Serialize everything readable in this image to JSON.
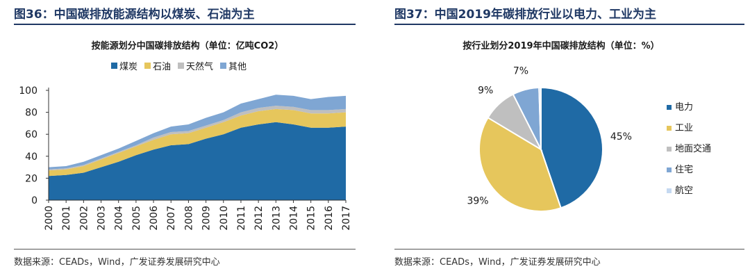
{
  "figures": {
    "left": {
      "caption": "图36：中国碳排放能源结构以煤炭、石油为主",
      "source": "数据来源：CEADs，Wind，广发证券发展研究中心"
    },
    "right": {
      "caption": "图37：中国2019年碳排放行业以电力、工业为主",
      "source": "数据来源：CEADs，Wind，广发证券发展研究中心"
    }
  },
  "chart_data": [
    {
      "type": "area",
      "stacked": true,
      "title": "按能源划分中国碳排放结构（单位：亿吨CO2）",
      "xlabel": "",
      "ylabel": "",
      "x": [
        "2000",
        "2001",
        "2002",
        "2003",
        "2004",
        "2005",
        "2006",
        "2007",
        "2008",
        "2009",
        "2010",
        "2011",
        "2012",
        "2013",
        "2014",
        "2015",
        "2016",
        "2017"
      ],
      "ylim": [
        0,
        100
      ],
      "yticks": [
        0,
        20,
        40,
        60,
        80,
        100
      ],
      "legend_position": "top",
      "grid": false,
      "series": [
        {
          "name": "煤炭",
          "color": "#1f6aa5",
          "values": [
            22,
            23,
            25,
            30,
            35,
            41,
            46,
            50,
            51,
            56,
            60,
            66,
            69,
            71,
            69,
            66,
            66,
            67
          ]
        },
        {
          "name": "石油",
          "color": "#e6c65c",
          "values": [
            5,
            5,
            6,
            7,
            8,
            8,
            9,
            10,
            10,
            10,
            11,
            11,
            12,
            12,
            13,
            13,
            13,
            13
          ]
        },
        {
          "name": "天然气",
          "color": "#bfbfbf",
          "values": [
            1,
            1,
            1,
            1,
            1,
            1,
            2,
            2,
            2,
            2,
            2,
            3,
            3,
            3,
            3,
            3,
            3,
            3
          ]
        },
        {
          "name": "其他",
          "color": "#7fa6d3",
          "values": [
            2,
            2,
            3,
            3,
            3,
            4,
            4,
            5,
            6,
            7,
            7,
            8,
            8,
            10,
            10,
            10,
            12,
            12
          ]
        }
      ]
    },
    {
      "type": "pie",
      "title": "按行业划分2019年中国碳排放结构（单位：%）",
      "legend_position": "right",
      "slices": [
        {
          "name": "电力",
          "value": 45,
          "label": "45%",
          "color": "#1f6aa5"
        },
        {
          "name": "工业",
          "value": 39,
          "label": "39%",
          "color": "#e6c65c"
        },
        {
          "name": "地面交通",
          "value": 9,
          "label": "9%",
          "color": "#bfbfbf"
        },
        {
          "name": "住宅",
          "value": 7,
          "label": "7%",
          "color": "#7fa6d3"
        },
        {
          "name": "航空",
          "value": 0.5,
          "label": "",
          "color": "#c5d9f1"
        }
      ]
    }
  ]
}
